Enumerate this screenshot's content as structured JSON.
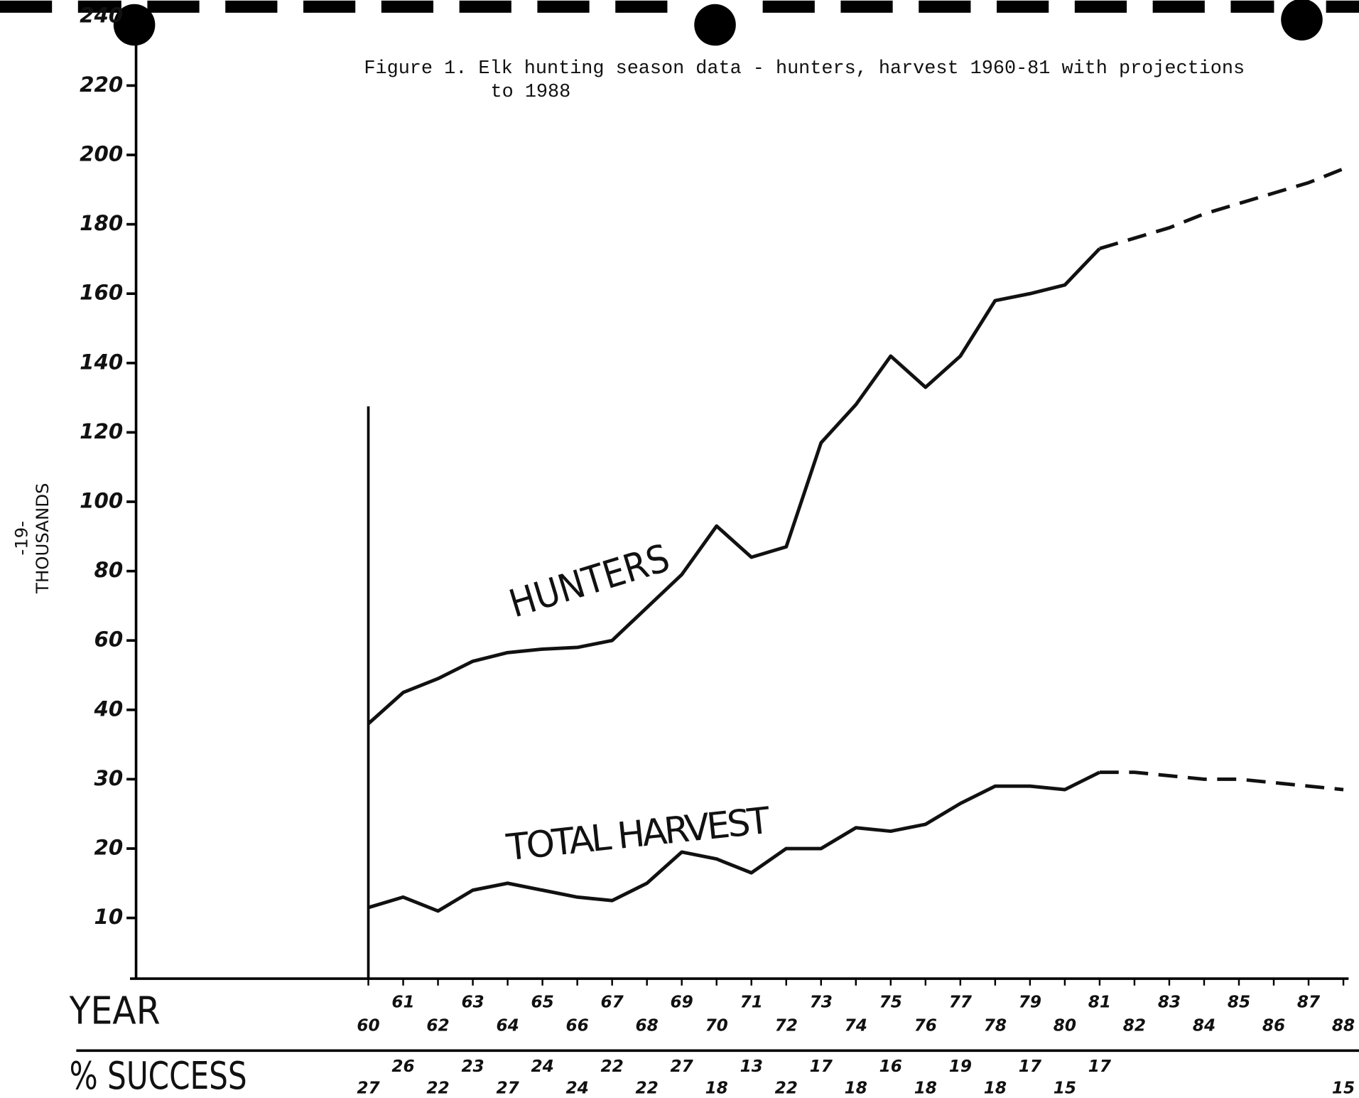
{
  "chart_data": {
    "type": "line",
    "title": "Figure 1.  Elk hunting season data - hunters, harvest 1960-81 with projections to 1988",
    "y_label": "THOUSANDS",
    "page_number": "-19-",
    "x_label": "YEAR",
    "success_label": "% SUCCESS",
    "x": [
      60,
      61,
      62,
      63,
      64,
      65,
      66,
      67,
      68,
      69,
      70,
      71,
      72,
      73,
      74,
      75,
      76,
      77,
      78,
      79,
      80,
      81,
      82,
      83,
      84,
      85,
      86,
      87,
      88
    ],
    "xlim": [
      60,
      88
    ],
    "ylim": [
      0,
      240
    ],
    "yticks": [
      10,
      20,
      30,
      40,
      60,
      80,
      100,
      120,
      140,
      160,
      180,
      200,
      220,
      240
    ],
    "series": [
      {
        "name": "HUNTERS",
        "color": "#111111",
        "values": [
          38,
          45,
          49,
          54,
          56.5,
          57.5,
          58,
          60,
          69.5,
          79,
          93,
          84,
          87,
          117,
          128,
          142,
          133,
          142,
          158,
          160,
          162.5,
          173,
          null,
          null,
          null,
          null,
          null,
          null,
          null
        ],
        "projection": [
          null,
          null,
          null,
          null,
          null,
          null,
          null,
          null,
          null,
          null,
          null,
          null,
          null,
          null,
          null,
          null,
          null,
          null,
          null,
          null,
          null,
          173,
          176,
          179,
          183,
          186,
          189,
          192,
          196
        ]
      },
      {
        "name": "TOTAL HARVEST",
        "color": "#111111",
        "values": [
          11.5,
          13,
          11,
          14,
          15,
          14,
          13,
          12.5,
          15,
          19.5,
          18.5,
          16.5,
          20,
          20,
          23,
          22.5,
          23.5,
          26.5,
          29,
          29,
          28.5,
          31,
          null,
          null,
          null,
          null,
          null,
          null,
          null
        ],
        "projection": [
          null,
          null,
          null,
          null,
          null,
          null,
          null,
          null,
          null,
          null,
          null,
          null,
          null,
          null,
          null,
          null,
          null,
          null,
          null,
          null,
          null,
          31,
          31,
          30.5,
          30,
          30,
          29.5,
          29,
          28.5
        ]
      }
    ],
    "success": [
      27,
      26,
      22,
      23,
      27,
      24,
      24,
      22,
      22,
      27,
      18,
      13,
      22,
      17,
      18,
      16,
      18,
      19,
      18,
      17,
      15,
      17,
      null,
      null,
      null,
      null,
      null,
      null,
      15
    ]
  }
}
